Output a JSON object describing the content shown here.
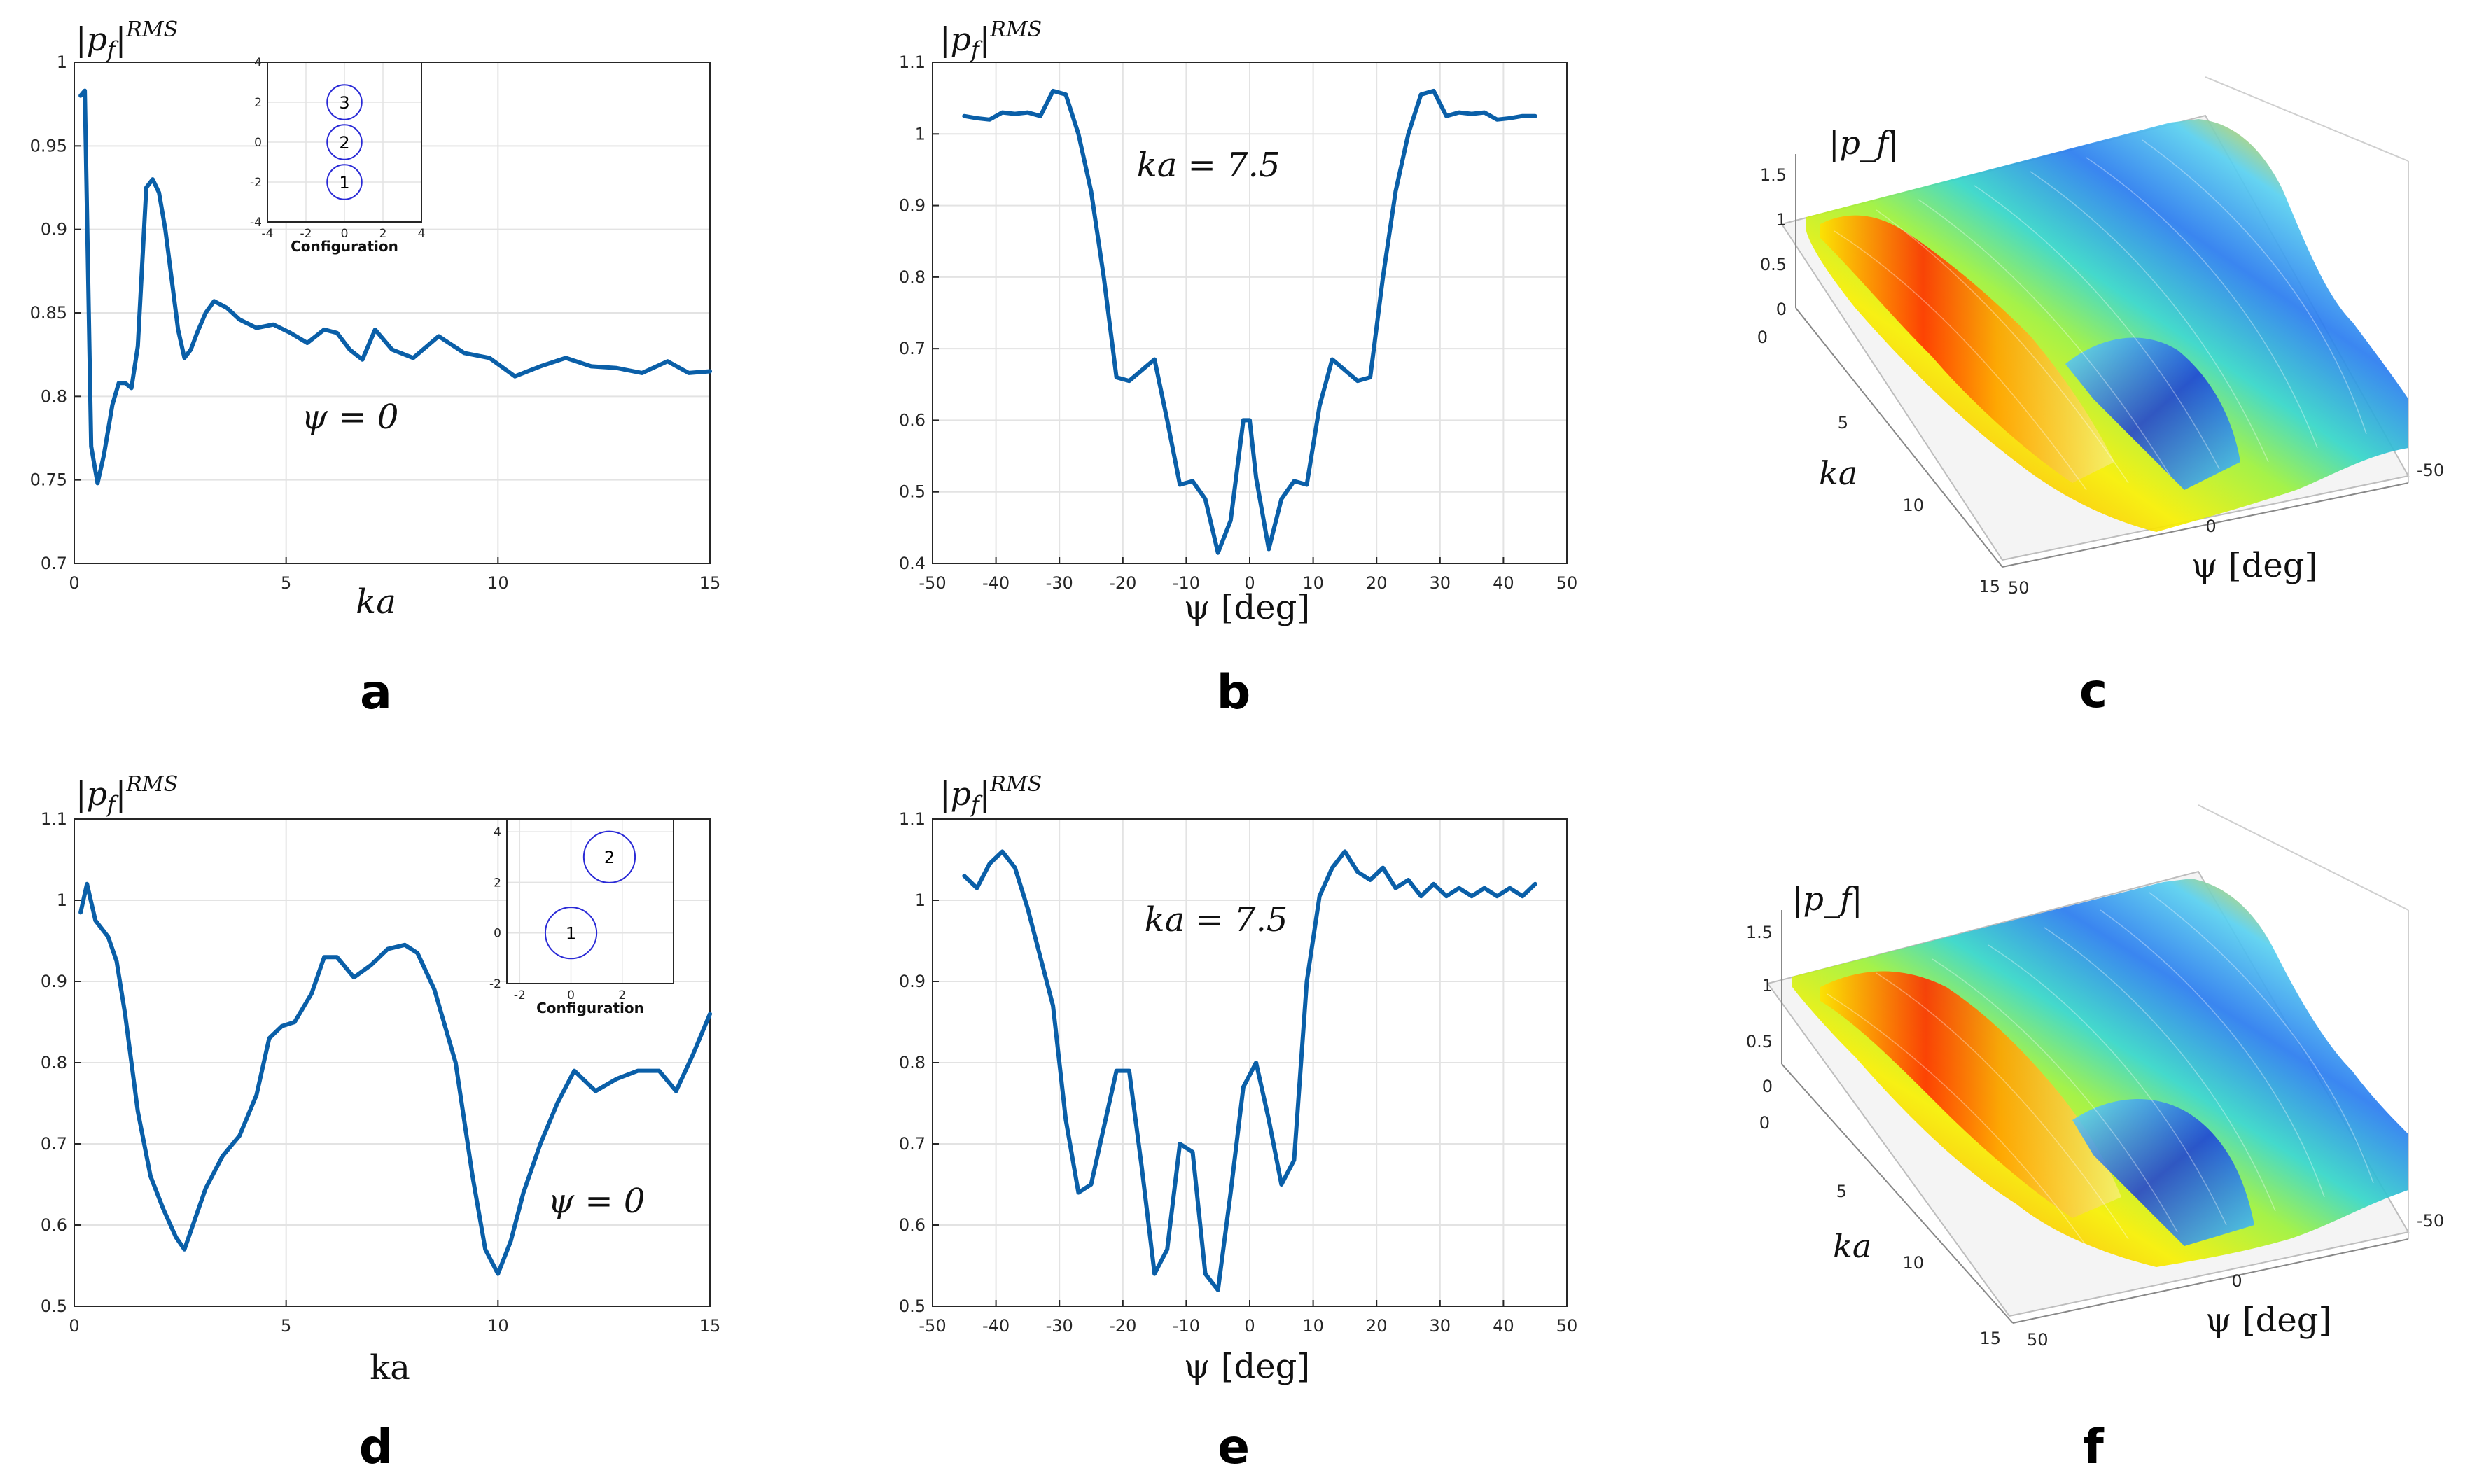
{
  "colors": {
    "line": "#0a5fa8",
    "grid": "#e3e3e3",
    "axis": "#262626",
    "inset_circle": "#2a2ad6"
  },
  "chart_data": [
    {
      "id": "a",
      "panel_label": "a",
      "type": "line",
      "ylabel": "|p_f|^RMS",
      "xlabel": "ka",
      "annotation": "ψ = 0",
      "xlim": [
        0,
        15
      ],
      "ylim": [
        0.7,
        1.0
      ],
      "xticks": [
        "0",
        "5",
        "10",
        "15"
      ],
      "yticks": [
        "0.7",
        "0.75",
        "0.8",
        "0.85",
        "0.9",
        "0.95",
        "1"
      ],
      "series": [
        {
          "name": "|p_f| RMS",
          "x": [
            0.15,
            0.25,
            0.4,
            0.55,
            0.7,
            0.9,
            1.05,
            1.2,
            1.35,
            1.5,
            1.7,
            1.85,
            2.0,
            2.15,
            2.3,
            2.45,
            2.6,
            2.75,
            2.9,
            3.1,
            3.3,
            3.6,
            3.9,
            4.3,
            4.7,
            5.1,
            5.5,
            5.9,
            6.2,
            6.5,
            6.8,
            7.1,
            7.5,
            8.0,
            8.6,
            9.2,
            9.8,
            10.4,
            11.0,
            11.6,
            12.2,
            12.8,
            13.4,
            14.0,
            14.5,
            15.0
          ],
          "y": [
            0.98,
            0.983,
            0.77,
            0.748,
            0.765,
            0.795,
            0.808,
            0.808,
            0.805,
            0.83,
            0.925,
            0.93,
            0.922,
            0.9,
            0.87,
            0.84,
            0.823,
            0.828,
            0.838,
            0.85,
            0.857,
            0.853,
            0.846,
            0.841,
            0.843,
            0.838,
            0.832,
            0.84,
            0.838,
            0.828,
            0.822,
            0.84,
            0.828,
            0.823,
            0.836,
            0.826,
            0.823,
            0.812,
            0.818,
            0.823,
            0.818,
            0.817,
            0.814,
            0.821,
            0.814,
            0.815
          ]
        }
      ],
      "inset": {
        "title": "Configuration",
        "xlim": [
          -4,
          4
        ],
        "ylim": [
          -4,
          4
        ],
        "xticks": [
          "-4",
          "-2",
          "0",
          "2",
          "4"
        ],
        "yticks": [
          "-4",
          "-2",
          "0",
          "2",
          "4"
        ],
        "circles": [
          {
            "label": "1",
            "x": 0,
            "y": -2,
            "r": 0.9
          },
          {
            "label": "2",
            "x": 0,
            "y": 0,
            "r": 0.9
          },
          {
            "label": "3",
            "x": 0,
            "y": 2,
            "r": 0.9
          }
        ]
      }
    },
    {
      "id": "b",
      "panel_label": "b",
      "type": "line",
      "ylabel": "|p_f|^RMS",
      "xlabel": "ψ [deg]",
      "annotation": "ka = 7.5",
      "xlim": [
        -50,
        50
      ],
      "ylim": [
        0.4,
        1.1
      ],
      "xticks": [
        "-50",
        "-40",
        "-30",
        "-20",
        "-10",
        "0",
        "10",
        "20",
        "30",
        "40",
        "50"
      ],
      "yticks": [
        "0.4",
        "0.5",
        "0.6",
        "0.7",
        "0.8",
        "0.9",
        "1",
        "1.1"
      ],
      "series": [
        {
          "name": "|p_f| RMS",
          "x": [
            -45,
            -43,
            -41,
            -39,
            -37,
            -35,
            -33,
            -31,
            -29,
            -27,
            -25,
            -23,
            -21,
            -19,
            -17,
            -15,
            -13,
            -11,
            -9,
            -7,
            -5,
            -3,
            -1,
            0,
            1,
            3,
            5,
            7,
            9,
            11,
            13,
            15,
            17,
            19,
            21,
            23,
            25,
            27,
            29,
            31,
            33,
            35,
            37,
            39,
            41,
            43,
            45
          ],
          "y": [
            1.025,
            1.022,
            1.02,
            1.03,
            1.028,
            1.03,
            1.025,
            1.06,
            1.055,
            1.0,
            0.92,
            0.8,
            0.66,
            0.655,
            0.67,
            0.685,
            0.6,
            0.51,
            0.515,
            0.49,
            0.415,
            0.46,
            0.6,
            0.6,
            0.52,
            0.42,
            0.49,
            0.515,
            0.51,
            0.62,
            0.685,
            0.67,
            0.655,
            0.66,
            0.8,
            0.92,
            1.0,
            1.055,
            1.06,
            1.025,
            1.03,
            1.028,
            1.03,
            1.02,
            1.022,
            1.025,
            1.025
          ]
        }
      ]
    },
    {
      "id": "c",
      "panel_label": "c",
      "type": "surface",
      "zlabel": "|p_f|",
      "xlabel": "ψ [deg]",
      "ylabel": "ka",
      "zticks": [
        "0",
        "0.5",
        "1",
        "1.5"
      ],
      "ka_ticks": [
        "0",
        "5",
        "10",
        "15"
      ],
      "psi_ticks": [
        "50",
        "0",
        "-50"
      ]
    },
    {
      "id": "d",
      "panel_label": "d",
      "type": "line",
      "ylabel": "|p_f|^RMS",
      "xlabel": "ka",
      "annotation": "ψ = 0",
      "xlim": [
        0,
        15
      ],
      "ylim": [
        0.5,
        1.1
      ],
      "xticks": [
        "0",
        "5",
        "10",
        "15"
      ],
      "yticks": [
        "0.5",
        "0.6",
        "0.7",
        "0.8",
        "0.9",
        "1",
        "1.1"
      ],
      "series": [
        {
          "name": "|p_f| RMS",
          "x": [
            0.15,
            0.3,
            0.5,
            0.8,
            1.0,
            1.2,
            1.5,
            1.8,
            2.1,
            2.4,
            2.6,
            2.8,
            3.1,
            3.5,
            3.9,
            4.3,
            4.6,
            4.9,
            5.2,
            5.6,
            5.9,
            6.2,
            6.6,
            7.0,
            7.4,
            7.8,
            8.1,
            8.5,
            9.0,
            9.4,
            9.7,
            10.0,
            10.3,
            10.6,
            11.0,
            11.4,
            11.8,
            12.3,
            12.8,
            13.3,
            13.8,
            14.2,
            14.6,
            15.0
          ],
          "y": [
            0.985,
            1.02,
            0.975,
            0.955,
            0.925,
            0.86,
            0.74,
            0.66,
            0.62,
            0.585,
            0.57,
            0.6,
            0.645,
            0.685,
            0.71,
            0.76,
            0.83,
            0.845,
            0.85,
            0.885,
            0.93,
            0.93,
            0.905,
            0.92,
            0.94,
            0.945,
            0.935,
            0.89,
            0.8,
            0.66,
            0.57,
            0.54,
            0.58,
            0.64,
            0.7,
            0.75,
            0.79,
            0.765,
            0.78,
            0.79,
            0.79,
            0.765,
            0.81,
            0.86
          ]
        }
      ],
      "inset": {
        "title": "Configuration",
        "xlim": [
          -2.5,
          4
        ],
        "ylim": [
          -2,
          4.5
        ],
        "xticks": [
          "-2",
          "0",
          "2"
        ],
        "yticks": [
          "-2",
          "0",
          "2",
          "4"
        ],
        "circles": [
          {
            "label": "1",
            "x": 0,
            "y": 0,
            "r": 1
          },
          {
            "label": "2",
            "x": 1.5,
            "y": 3,
            "r": 1
          }
        ]
      }
    },
    {
      "id": "e",
      "panel_label": "e",
      "type": "line",
      "ylabel": "|p_f|^RMS",
      "xlabel": "ψ [deg]",
      "annotation": "ka = 7.5",
      "xlim": [
        -50,
        50
      ],
      "ylim": [
        0.5,
        1.1
      ],
      "xticks": [
        "-50",
        "-40",
        "-30",
        "-20",
        "-10",
        "0",
        "10",
        "20",
        "30",
        "40",
        "50"
      ],
      "yticks": [
        "0.5",
        "0.6",
        "0.7",
        "0.8",
        "0.9",
        "1",
        "1.1"
      ],
      "series": [
        {
          "name": "|p_f| RMS",
          "x": [
            -45,
            -43,
            -41,
            -39,
            -37,
            -35,
            -33,
            -31,
            -29,
            -27,
            -25,
            -23,
            -21,
            -19,
            -17,
            -15,
            -13,
            -11,
            -9,
            -7,
            -5,
            -3,
            -1,
            1,
            3,
            5,
            7,
            9,
            11,
            13,
            15,
            17,
            19,
            21,
            23,
            25,
            27,
            29,
            31,
            33,
            35,
            37,
            39,
            41,
            43,
            45
          ],
          "y": [
            1.03,
            1.015,
            1.045,
            1.06,
            1.04,
            0.99,
            0.93,
            0.87,
            0.73,
            0.64,
            0.65,
            0.72,
            0.79,
            0.79,
            0.67,
            0.54,
            0.57,
            0.7,
            0.69,
            0.54,
            0.52,
            0.64,
            0.77,
            0.8,
            0.73,
            0.65,
            0.68,
            0.9,
            1.005,
            1.04,
            1.06,
            1.035,
            1.025,
            1.04,
            1.015,
            1.025,
            1.005,
            1.02,
            1.005,
            1.015,
            1.005,
            1.015,
            1.005,
            1.015,
            1.005,
            1.02
          ]
        }
      ]
    },
    {
      "id": "f",
      "panel_label": "f",
      "type": "surface",
      "zlabel": "|p_f|",
      "xlabel": "ψ [deg]",
      "ylabel": "ka",
      "zticks": [
        "0",
        "0.5",
        "1",
        "1.5"
      ],
      "ka_ticks": [
        "0",
        "5",
        "10",
        "15"
      ],
      "psi_ticks": [
        "50",
        "0",
        "-50"
      ]
    }
  ]
}
